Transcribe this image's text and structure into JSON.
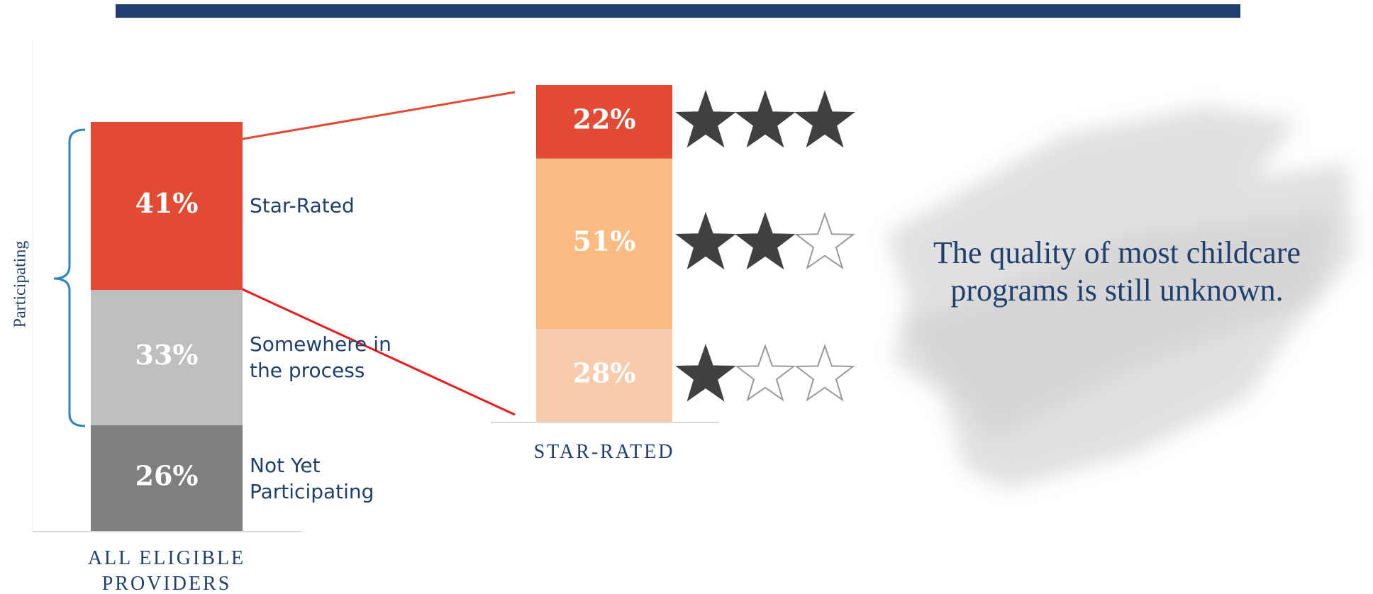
{
  "chart_data": [
    {
      "type": "stacked_bar",
      "categories": [
        "ALL ELIGIBLE PROVIDERS"
      ],
      "bracket_label": "Participating",
      "series": [
        {
          "name": "Not Yet Participating",
          "color": "#7f7f7f",
          "values": [
            26
          ],
          "value_labels": [
            "26%"
          ]
        },
        {
          "name": "Somewhere in the process",
          "color": "#bfbfbf",
          "values": [
            33
          ],
          "value_labels": [
            "33%"
          ]
        },
        {
          "name": "Star-Rated",
          "color": "#e34a33",
          "values": [
            41
          ],
          "value_labels": [
            "41%"
          ]
        }
      ]
    },
    {
      "type": "stacked_bar",
      "categories": [
        "STAR-RATED"
      ],
      "series": [
        {
          "color": "#f8cbad",
          "values": [
            28
          ],
          "value_labels": [
            "28%"
          ],
          "stars": 1
        },
        {
          "color": "#fdbb84",
          "values": [
            51
          ],
          "value_labels": [
            "51%"
          ],
          "stars": 2
        },
        {
          "color": "#e34a33",
          "values": [
            22
          ],
          "value_labels": [
            "22%"
          ],
          "stars": 3
        }
      ]
    }
  ],
  "annotation": "The quality of most childcare programs is still unknown."
}
